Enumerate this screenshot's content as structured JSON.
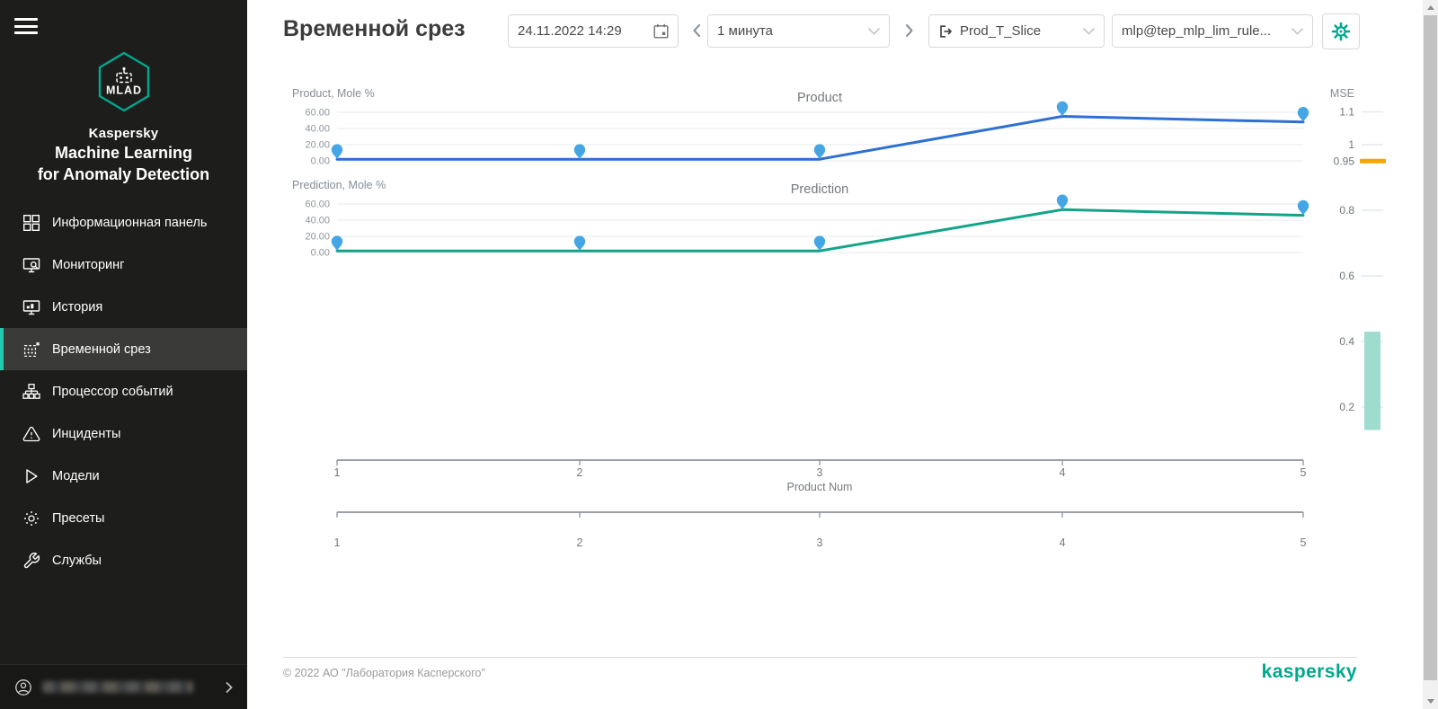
{
  "app": {
    "accent_color": "#00a88e"
  },
  "sidebar": {
    "brand": {
      "logo_text": "MLAD",
      "company": "Kaspersky",
      "product_line1": "Machine Learning",
      "product_line2": "for Anomaly Detection"
    },
    "items": [
      {
        "id": "dashboard",
        "label": "Информационная панель",
        "icon": "dashboard-icon",
        "active": false
      },
      {
        "id": "monitoring",
        "label": "Мониторинг",
        "icon": "monitoring-icon",
        "active": false
      },
      {
        "id": "history",
        "label": "История",
        "icon": "history-icon",
        "active": false
      },
      {
        "id": "time-slice",
        "label": "Временной срез",
        "icon": "time-slice-icon",
        "active": true
      },
      {
        "id": "event-processor",
        "label": "Процессор событий",
        "icon": "event-processor-icon",
        "active": false
      },
      {
        "id": "incidents",
        "label": "Инциденты",
        "icon": "incidents-icon",
        "active": false
      },
      {
        "id": "models",
        "label": "Модели",
        "icon": "models-icon",
        "active": false
      },
      {
        "id": "presets",
        "label": "Пресеты",
        "icon": "presets-icon",
        "active": false
      },
      {
        "id": "services",
        "label": "Службы",
        "icon": "services-icon",
        "active": false
      }
    ],
    "user": {
      "email_visible": false
    }
  },
  "header": {
    "title": "Временной срез",
    "datetime": "24.11.2022  14:29",
    "interval": "1 минута",
    "slice": "Prod_T_Slice",
    "model": "mlp@tep_mlp_lim_rule..."
  },
  "chart_data": [
    {
      "type": "line",
      "title": "Product",
      "ylabel": "Product, Mole %",
      "x": [
        1,
        2,
        3,
        4,
        5
      ],
      "values": [
        2,
        2,
        2,
        55,
        48
      ],
      "ytick_labels": [
        "60.00",
        "40.00",
        "20.00",
        "0.00"
      ],
      "ylim": [
        0,
        75
      ],
      "grid": true,
      "line_color": "#2e6fd3",
      "marker_color": "#45a6e5"
    },
    {
      "type": "line",
      "title": "Prediction",
      "ylabel": "Prediction, Mole %",
      "x": [
        1,
        2,
        3,
        4,
        5
      ],
      "values": [
        2,
        2,
        2,
        53,
        46
      ],
      "ytick_labels": [
        "60.00",
        "40.00",
        "20.00",
        "0.00"
      ],
      "ylim": [
        0,
        75
      ],
      "grid": true,
      "line_color": "#12a489",
      "marker_color": "#45a6e5"
    },
    {
      "type": "axis",
      "title": "MSE",
      "side": "right",
      "tick_labels": [
        "1.1",
        "1",
        "0.95",
        "0.8",
        "0.6",
        "0.4",
        "0.2"
      ],
      "tick_values": [
        1.1,
        1,
        0.95,
        0.8,
        0.6,
        0.4,
        0.2
      ],
      "threshold": {
        "value": 0.95,
        "color": "#f7a600"
      },
      "bar": {
        "from": 0.13,
        "to": 0.43,
        "color": "#9fdcd0"
      }
    },
    {
      "type": "xaxis",
      "label": "Product Num",
      "ticks": [
        "1",
        "2",
        "3",
        "4",
        "5"
      ]
    },
    {
      "type": "xaxis",
      "label": "",
      "ticks": [
        "1",
        "2",
        "3",
        "4",
        "5"
      ]
    }
  ],
  "footer": {
    "copyright": "© 2022 АО \"Лаборатория Касперского\"",
    "logo_text": "kaspersky"
  }
}
